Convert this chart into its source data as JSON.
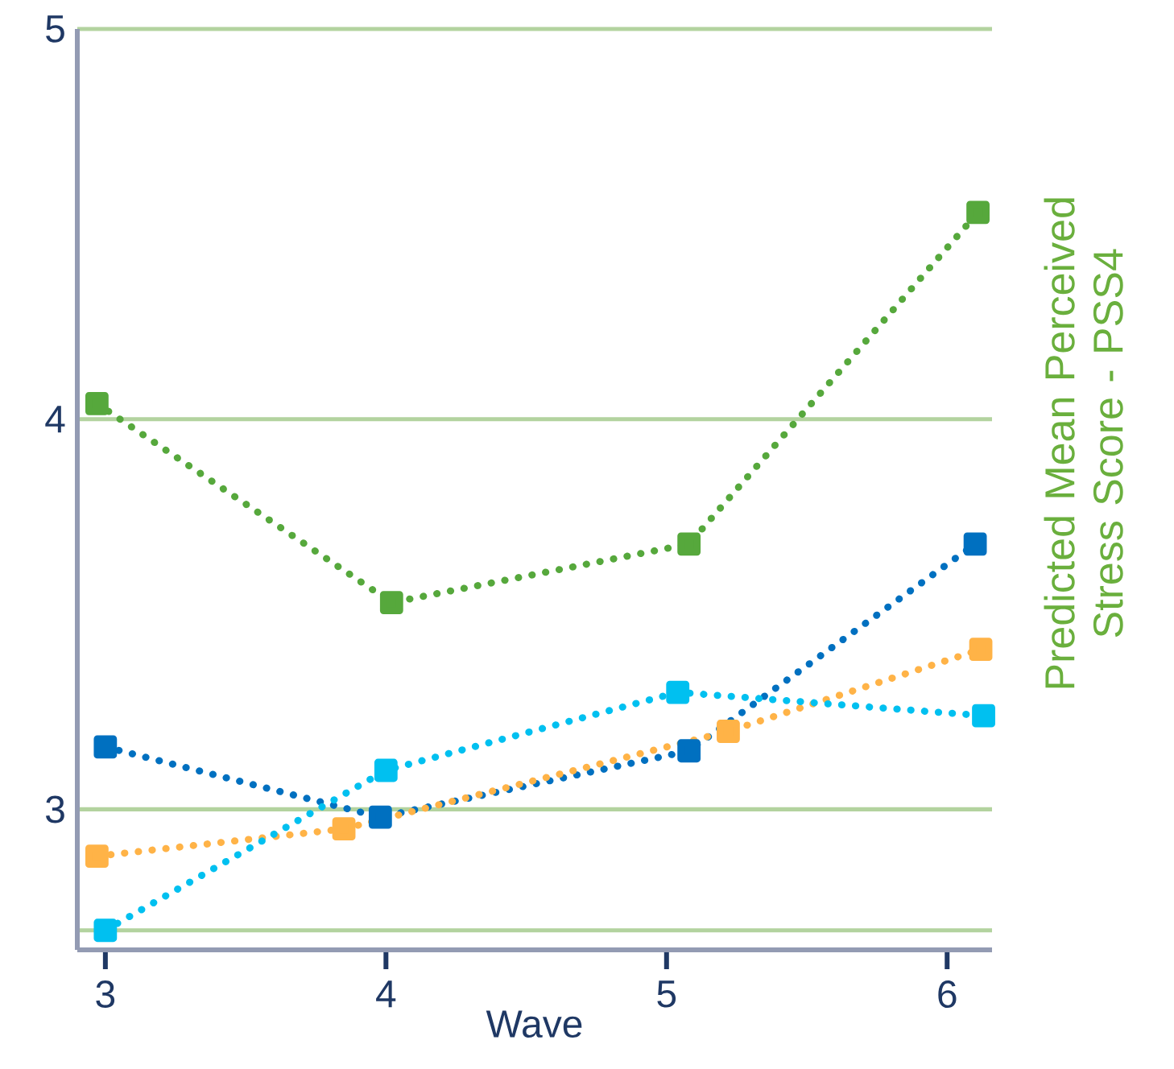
{
  "chart_data": {
    "type": "line",
    "xlabel": "Wave",
    "ylabel": "Predicted Mean Perceived Stress Score - PSS4",
    "xlim": [
      2.9,
      6.16
    ],
    "ylim": [
      2.64,
      5
    ],
    "xticks": [
      3,
      4,
      5,
      6
    ],
    "yticks": [
      {
        "value": 2.69,
        "label": null
      },
      3,
      4,
      5
    ],
    "grid": "y",
    "marker": "square",
    "line_style": "dotted",
    "series": [
      {
        "color": "#56a83c",
        "x": [
          2.97,
          4.02,
          5.08,
          6.11
        ],
        "values": [
          4.04,
          3.53,
          3.68,
          4.53
        ]
      },
      {
        "color": "#0070c0",
        "x": [
          3.0,
          3.98,
          5.08,
          6.1
        ],
        "values": [
          3.16,
          2.98,
          3.15,
          3.68
        ]
      },
      {
        "color": "#ffb347",
        "x": [
          2.97,
          3.85,
          5.22,
          6.12
        ],
        "values": [
          2.88,
          2.95,
          3.2,
          3.41
        ]
      },
      {
        "color": "#00c0f0",
        "x": [
          3.0,
          4.0,
          5.04,
          6.13
        ],
        "values": [
          2.69,
          3.1,
          3.3,
          3.24
        ]
      }
    ]
  }
}
